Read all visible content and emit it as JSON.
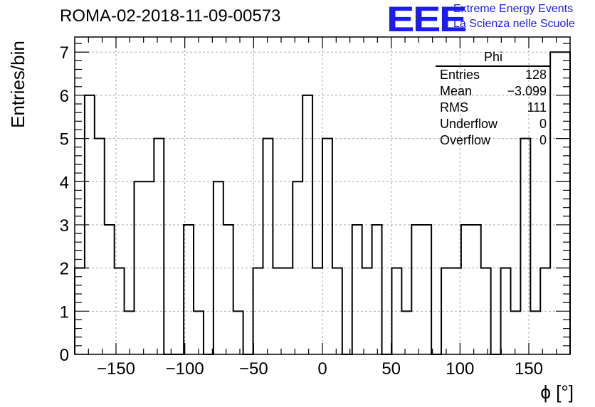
{
  "chart_data": {
    "type": "histogram",
    "title": "ROMA-02-2018-11-09-00573",
    "xlabel": "ϕ [°]",
    "ylabel": "Entries/bin",
    "xlim": [
      -180,
      180
    ],
    "ylim": [
      0,
      7.35
    ],
    "x_ticks": [
      -150,
      -100,
      -50,
      0,
      50,
      100,
      150
    ],
    "x_tick_labels": [
      "−150",
      "−100",
      "−50",
      "0",
      "50",
      "100",
      "150"
    ],
    "y_ticks": [
      0,
      1,
      2,
      3,
      4,
      5,
      6,
      7
    ],
    "y_tick_labels": [
      "0",
      "1",
      "2",
      "3",
      "4",
      "5",
      "6",
      "7"
    ],
    "bin_width": 7.2,
    "bin_start": -180,
    "values": [
      2,
      6,
      5,
      3,
      2,
      1,
      4,
      4,
      5,
      0,
      0,
      3,
      1,
      0,
      4,
      3,
      1,
      0,
      2,
      5,
      2,
      2,
      4,
      6,
      2,
      5,
      2,
      0,
      3,
      2,
      3,
      0,
      2,
      1,
      3,
      3,
      0,
      2,
      2,
      3,
      3,
      2,
      0,
      2,
      1,
      5,
      1,
      2,
      7,
      7
    ],
    "grid": true,
    "stats": {
      "name": "Phi",
      "rows": [
        {
          "label": "Entries",
          "value": "128"
        },
        {
          "label": "Mean",
          "value": "−3.099"
        },
        {
          "label": "RMS",
          "value": "111"
        },
        {
          "label": "Underflow",
          "value": "0"
        },
        {
          "label": "Overflow",
          "value": "0"
        }
      ]
    }
  },
  "logo": {
    "text": "EEE",
    "line1": "Extreme Energy Events",
    "line2": "La Scienza nelle Scuole",
    "color": "#1c1cf0"
  }
}
